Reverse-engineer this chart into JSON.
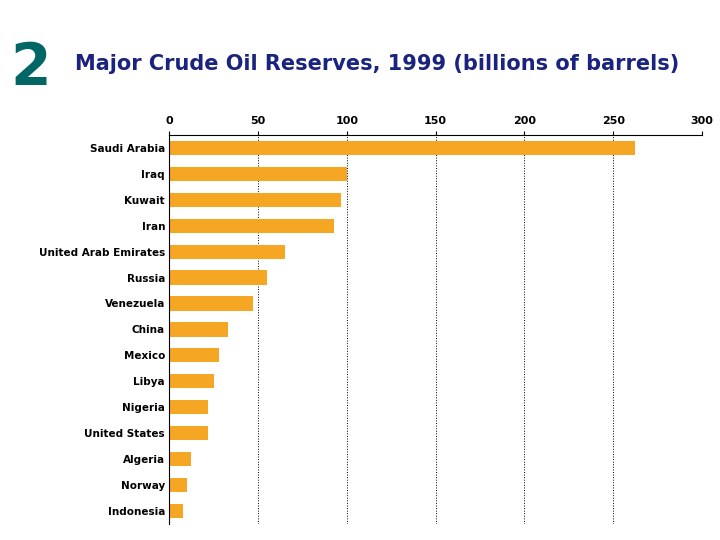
{
  "title": "Major Crude Oil Reserves, 1999 (billions of barrels)",
  "title_number": "2",
  "categories": [
    "Saudi Arabia",
    "Iraq",
    "Kuwait",
    "Iran",
    "United Arab Emirates",
    "Russia",
    "Venezuela",
    "China",
    "Mexico",
    "Libya",
    "Nigeria",
    "United States",
    "Algeria",
    "Norway",
    "Indonesia"
  ],
  "values": [
    262,
    100,
    97,
    93,
    65,
    55,
    47,
    33,
    28,
    25,
    22,
    22,
    12,
    10,
    8
  ],
  "bar_color": "#F5A623",
  "background_color": "#FFFFFF",
  "left_strip_color": "#0000CC",
  "top_left_box_color": "#99CCEE",
  "number_color": "#006666",
  "title_color": "#1A237E",
  "xlim": [
    0,
    300
  ],
  "xticks": [
    0,
    50,
    100,
    150,
    200,
    250,
    300
  ],
  "grid_color": "#000000",
  "bar_height": 0.55,
  "title_fontsize": 15,
  "number_fontsize": 42,
  "tick_fontsize": 8,
  "label_fontsize": 7.5
}
